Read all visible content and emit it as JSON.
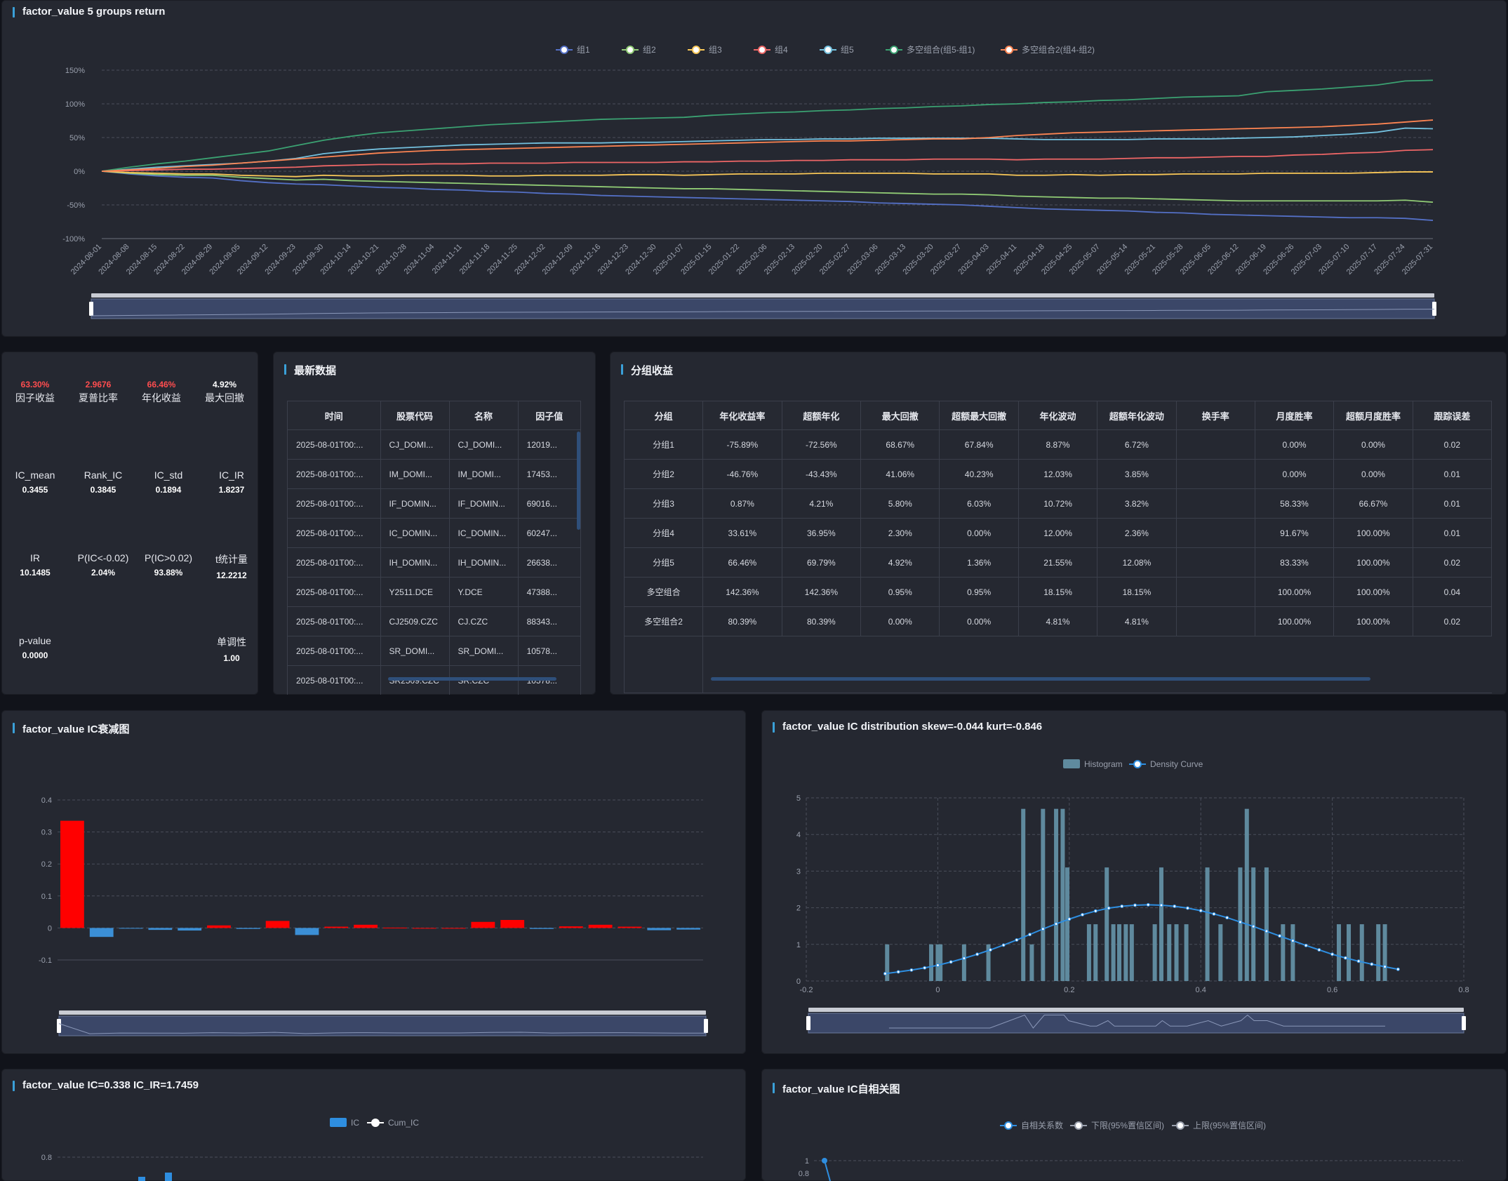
{
  "colors": {
    "g1": "#5470c6",
    "g2": "#91cc75",
    "g3": "#fac858",
    "g4": "#ee6666",
    "g5": "#73c0de",
    "ls1": "#3ba272",
    "ls2": "#fc8452"
  },
  "panels": {
    "returns_title": "factor_value 5 groups return",
    "latest_title": "最新数据",
    "group_title": "分组收益",
    "decay_title": "factor_value IC衰减图",
    "dist_title": "factor_value IC distribution skew=-0.044 kurt=-0.846",
    "ic_title": "factor_value IC=0.338 IC_IR=1.7459",
    "acf_title": "factor_value IC自相关图"
  },
  "stats": [
    {
      "value": "63.30%",
      "label": "因子收益",
      "red": true
    },
    {
      "value": "2.9676",
      "label": "夏普比率",
      "red": true
    },
    {
      "value": "66.46%",
      "label": "年化收益",
      "red": true
    },
    {
      "value": "4.92%",
      "label": "最大回撤",
      "red": false
    },
    {
      "value": "0.3455",
      "label": "IC_mean"
    },
    {
      "value": "0.3845",
      "label": "Rank_IC"
    },
    {
      "value": "0.1894",
      "label": "IC_std"
    },
    {
      "value": "1.8237",
      "label": "IC_IR"
    },
    {
      "value": "10.1485",
      "label": "IR"
    },
    {
      "value": "2.04%",
      "label": "P(IC<-0.02)"
    },
    {
      "value": "93.88%",
      "label": "P(IC>0.02)"
    },
    {
      "value": "12.2212",
      "label": "t统计量"
    },
    {
      "value": "0.0000",
      "label": "p-value"
    },
    {
      "value": "1.00",
      "label": "单调性"
    }
  ],
  "latest": {
    "headers": [
      "时间",
      "股票代码",
      "名称",
      "因子值"
    ],
    "rows": [
      [
        "2025-08-01T00:...",
        "CJ_DOMI...",
        "CJ_DOMI...",
        "12019..."
      ],
      [
        "2025-08-01T00:...",
        "IM_DOMI...",
        "IM_DOMI...",
        "17453..."
      ],
      [
        "2025-08-01T00:...",
        "IF_DOMIN...",
        "IF_DOMIN...",
        "69016..."
      ],
      [
        "2025-08-01T00:...",
        "IC_DOMIN...",
        "IC_DOMIN...",
        "60247..."
      ],
      [
        "2025-08-01T00:...",
        "IH_DOMIN...",
        "IH_DOMIN...",
        "26638..."
      ],
      [
        "2025-08-01T00:...",
        "Y2511.DCE",
        "Y.DCE",
        "47388..."
      ],
      [
        "2025-08-01T00:...",
        "CJ2509.CZC",
        "CJ.CZC",
        "88343..."
      ],
      [
        "2025-08-01T00:...",
        "SR_DOMI...",
        "SR_DOMI...",
        "10578..."
      ],
      [
        "2025-08-01T00:...",
        "SR2509.CZC",
        "SR.CZC",
        "10578..."
      ]
    ]
  },
  "groups": {
    "headers": [
      "分组",
      "年化收益率",
      "超额年化",
      "最大回撤",
      "超额最大回撤",
      "年化波动",
      "超额年化波动",
      "换手率",
      "月度胜率",
      "超额月度胜率",
      "跟踪误差"
    ],
    "rows": [
      [
        "分组1",
        "-75.89%",
        "-72.56%",
        "68.67%",
        "67.84%",
        "8.87%",
        "6.72%",
        "",
        "0.00%",
        "0.00%",
        "0.02"
      ],
      [
        "分组2",
        "-46.76%",
        "-43.43%",
        "41.06%",
        "40.23%",
        "12.03%",
        "3.85%",
        "",
        "0.00%",
        "0.00%",
        "0.01"
      ],
      [
        "分组3",
        "0.87%",
        "4.21%",
        "5.80%",
        "6.03%",
        "10.72%",
        "3.82%",
        "",
        "58.33%",
        "66.67%",
        "0.01"
      ],
      [
        "分组4",
        "33.61%",
        "36.95%",
        "2.30%",
        "0.00%",
        "12.00%",
        "2.36%",
        "",
        "91.67%",
        "100.00%",
        "0.01"
      ],
      [
        "分组5",
        "66.46%",
        "69.79%",
        "4.92%",
        "1.36%",
        "21.55%",
        "12.08%",
        "",
        "83.33%",
        "100.00%",
        "0.02"
      ],
      [
        "多空组合",
        "142.36%",
        "142.36%",
        "0.95%",
        "0.95%",
        "18.15%",
        "18.15%",
        "",
        "100.00%",
        "100.00%",
        "0.04"
      ],
      [
        "多空组合2",
        "80.39%",
        "80.39%",
        "0.00%",
        "0.00%",
        "4.81%",
        "4.81%",
        "",
        "100.00%",
        "100.00%",
        "0.02"
      ]
    ]
  },
  "chart_data": [
    {
      "type": "line",
      "title": "factor_value 5 groups return",
      "ylim": [
        -100,
        150
      ],
      "yticks": [
        "150%",
        "100%",
        "50%",
        "0%",
        "-50%",
        "-100%"
      ],
      "x_dates": [
        "2024-08-01",
        "2024-08-08",
        "2024-08-15",
        "2024-08-22",
        "2024-08-29",
        "2024-09-05",
        "2024-09-12",
        "2024-09-23",
        "2024-09-30",
        "2024-10-14",
        "2024-10-21",
        "2024-10-28",
        "2024-11-04",
        "2024-11-11",
        "2024-11-18",
        "2024-11-25",
        "2024-12-02",
        "2024-12-09",
        "2024-12-16",
        "2024-12-23",
        "2024-12-30",
        "2025-01-07",
        "2025-01-15",
        "2025-01-22",
        "2025-02-06",
        "2025-02-13",
        "2025-02-20",
        "2025-02-27",
        "2025-03-06",
        "2025-03-13",
        "2025-03-20",
        "2025-03-27",
        "2025-04-03",
        "2025-04-11",
        "2025-04-18",
        "2025-04-25",
        "2025-05-07",
        "2025-05-14",
        "2025-05-21",
        "2025-05-28",
        "2025-06-05",
        "2025-06-12",
        "2025-06-19",
        "2025-06-26",
        "2025-07-03",
        "2025-07-10",
        "2025-07-17",
        "2025-07-24",
        "2025-07-31"
      ],
      "series": [
        {
          "name": "组1",
          "color": "#5470c6",
          "values": [
            0,
            -4,
            -7,
            -9,
            -10,
            -14,
            -17,
            -19,
            -20,
            -22,
            -24,
            -25,
            -27,
            -28,
            -30,
            -31,
            -33,
            -34,
            -36,
            -37,
            -38,
            -39,
            -40,
            -41,
            -42,
            -43,
            -44,
            -45,
            -47,
            -48,
            -49,
            -50,
            -52,
            -54,
            -56,
            -57,
            -58,
            -59,
            -61,
            -62,
            -64,
            -65,
            -66,
            -67,
            -68,
            -69,
            -69,
            -70,
            -73
          ]
        },
        {
          "name": "组2",
          "color": "#91cc75",
          "values": [
            0,
            -3,
            -5,
            -6,
            -6,
            -9,
            -11,
            -13,
            -12,
            -14,
            -15,
            -16,
            -17,
            -18,
            -19,
            -20,
            -21,
            -22,
            -23,
            -24,
            -25,
            -26,
            -26,
            -27,
            -28,
            -29,
            -30,
            -31,
            -32,
            -33,
            -34,
            -34,
            -35,
            -37,
            -38,
            -39,
            -40,
            -40,
            -41,
            -42,
            -43,
            -44,
            -44,
            -44,
            -44,
            -44,
            -44,
            -43,
            -46
          ]
        },
        {
          "name": "组3",
          "color": "#fac858",
          "values": [
            0,
            -2,
            -3,
            -4,
            -4,
            -6,
            -7,
            -8,
            -6,
            -7,
            -7,
            -6,
            -6,
            -6,
            -7,
            -7,
            -6,
            -6,
            -6,
            -5,
            -5,
            -6,
            -5,
            -4,
            -4,
            -4,
            -3,
            -3,
            -3,
            -3,
            -4,
            -4,
            -4,
            -6,
            -6,
            -5,
            -6,
            -5,
            -5,
            -4,
            -4,
            -4,
            -3,
            -3,
            -3,
            -3,
            -2,
            -1,
            -1
          ]
        },
        {
          "name": "组4",
          "color": "#ee6666",
          "values": [
            0,
            1,
            2,
            3,
            3,
            4,
            5,
            6,
            8,
            9,
            10,
            10,
            11,
            11,
            12,
            12,
            12,
            13,
            13,
            13,
            13,
            14,
            14,
            15,
            15,
            16,
            16,
            17,
            17,
            17,
            18,
            18,
            18,
            17,
            18,
            18,
            18,
            19,
            20,
            20,
            21,
            22,
            22,
            24,
            25,
            27,
            28,
            31,
            32
          ]
        },
        {
          "name": "组5",
          "color": "#73c0de",
          "values": [
            0,
            3,
            6,
            8,
            10,
            12,
            15,
            19,
            26,
            30,
            33,
            35,
            37,
            39,
            40,
            41,
            42,
            42,
            42,
            43,
            43,
            44,
            45,
            46,
            47,
            47,
            48,
            48,
            49,
            49,
            49,
            49,
            49,
            48,
            47,
            47,
            47,
            47,
            48,
            48,
            48,
            49,
            50,
            51,
            53,
            55,
            58,
            64,
            63
          ]
        },
        {
          "name": "多空组合(组5-组1)",
          "color": "#3ba272",
          "values": [
            0,
            6,
            11,
            15,
            20,
            25,
            30,
            38,
            46,
            52,
            57,
            60,
            63,
            66,
            69,
            71,
            73,
            75,
            77,
            78,
            79,
            80,
            83,
            85,
            87,
            88,
            90,
            91,
            93,
            94,
            96,
            97,
            99,
            100,
            102,
            103,
            105,
            106,
            108,
            110,
            111,
            112,
            118,
            120,
            122,
            125,
            128,
            134,
            135
          ]
        },
        {
          "name": "多空组合2(组4-组2)",
          "color": "#fc8452",
          "values": [
            0,
            2,
            4,
            7,
            9,
            12,
            15,
            18,
            21,
            24,
            27,
            29,
            31,
            32,
            33,
            34,
            35,
            36,
            37,
            38,
            39,
            40,
            41,
            42,
            43,
            44,
            45,
            45,
            46,
            47,
            48,
            48,
            50,
            53,
            55,
            57,
            58,
            59,
            60,
            61,
            62,
            63,
            64,
            65,
            66,
            68,
            70,
            73,
            76
          ]
        }
      ]
    },
    {
      "type": "bar",
      "title": "factor_value IC衰减图",
      "ylim": [
        -0.1,
        0.4
      ],
      "yticks": [
        "0.4",
        "0.3",
        "0.2",
        "0.1",
        "0",
        "-0.1"
      ],
      "values": [
        0.335,
        -0.028,
        -0.002,
        -0.006,
        -0.008,
        0.008,
        -0.003,
        0.022,
        -0.022,
        0.004,
        0.01,
        0.001,
        0,
        0,
        0.019,
        0.025,
        -0.003,
        0.005,
        0.01,
        0.004,
        -0.007,
        -0.005
      ]
    },
    {
      "type": "bar",
      "title": "factor_value IC distribution skew=-0.044 kurt=-0.846",
      "legend": [
        "Histogram",
        "Density Curve"
      ],
      "xlim": [
        -0.2,
        0.8
      ],
      "ylim": [
        0,
        5
      ],
      "xticks": [
        "-0.2",
        "0",
        "0.2",
        "0.4",
        "0.6",
        "0.8"
      ],
      "yticks": [
        "5",
        "4",
        "3",
        "2",
        "1",
        "0"
      ],
      "bins": [
        [
          -0.077,
          1
        ],
        [
          -0.01,
          1
        ],
        [
          0,
          1
        ],
        [
          0.004,
          1
        ],
        [
          0.04,
          1
        ],
        [
          0.077,
          1
        ],
        [
          0.13,
          4.7
        ],
        [
          0.143,
          1
        ],
        [
          0.16,
          4.7
        ],
        [
          0.18,
          4.7
        ],
        [
          0.19,
          4.7
        ],
        [
          0.197,
          3.1
        ],
        [
          0.23,
          1.55
        ],
        [
          0.24,
          1.55
        ],
        [
          0.257,
          3.1
        ],
        [
          0.267,
          1.55
        ],
        [
          0.276,
          1.55
        ],
        [
          0.286,
          1.55
        ],
        [
          0.295,
          1.55
        ],
        [
          0.33,
          1.55
        ],
        [
          0.34,
          3.1
        ],
        [
          0.352,
          1.55
        ],
        [
          0.363,
          1.55
        ],
        [
          0.378,
          1.55
        ],
        [
          0.41,
          3.1
        ],
        [
          0.43,
          1.55
        ],
        [
          0.46,
          3.1
        ],
        [
          0.47,
          4.7
        ],
        [
          0.48,
          3.1
        ],
        [
          0.5,
          3.1
        ],
        [
          0.525,
          1.55
        ],
        [
          0.54,
          1.55
        ],
        [
          0.61,
          1.55
        ],
        [
          0.625,
          1.55
        ],
        [
          0.645,
          1.55
        ],
        [
          0.67,
          1.55
        ],
        [
          0.68,
          1.55
        ]
      ],
      "density_x": [
        -0.08,
        -0.06,
        -0.04,
        -0.02,
        0,
        0.02,
        0.04,
        0.06,
        0.08,
        0.1,
        0.12,
        0.14,
        0.16,
        0.18,
        0.2,
        0.22,
        0.24,
        0.26,
        0.28,
        0.3,
        0.32,
        0.34,
        0.36,
        0.38,
        0.4,
        0.42,
        0.44,
        0.46,
        0.48,
        0.5,
        0.52,
        0.54,
        0.56,
        0.58,
        0.6,
        0.62,
        0.64,
        0.66,
        0.68,
        0.7
      ],
      "density_y": [
        0.2,
        0.25,
        0.3,
        0.36,
        0.43,
        0.52,
        0.62,
        0.73,
        0.85,
        0.98,
        1.12,
        1.27,
        1.42,
        1.56,
        1.69,
        1.81,
        1.91,
        1.99,
        2.04,
        2.07,
        2.08,
        2.07,
        2.04,
        1.99,
        1.92,
        1.83,
        1.73,
        1.61,
        1.49,
        1.36,
        1.23,
        1.1,
        0.97,
        0.85,
        0.73,
        0.63,
        0.54,
        0.46,
        0.39,
        0.32
      ]
    },
    {
      "type": "bar",
      "title": "factor_value IC=0.338 IC_IR=1.7459",
      "legend": [
        "IC",
        "Cum_IC"
      ],
      "yticks": [
        "0.8"
      ]
    },
    {
      "type": "line",
      "title": "factor_value IC自相关图",
      "legend": [
        "自相关系数",
        "下限(95%置信区间)",
        "上限(95%置信区间)"
      ],
      "yticks": [
        "1",
        "0.8"
      ]
    }
  ]
}
